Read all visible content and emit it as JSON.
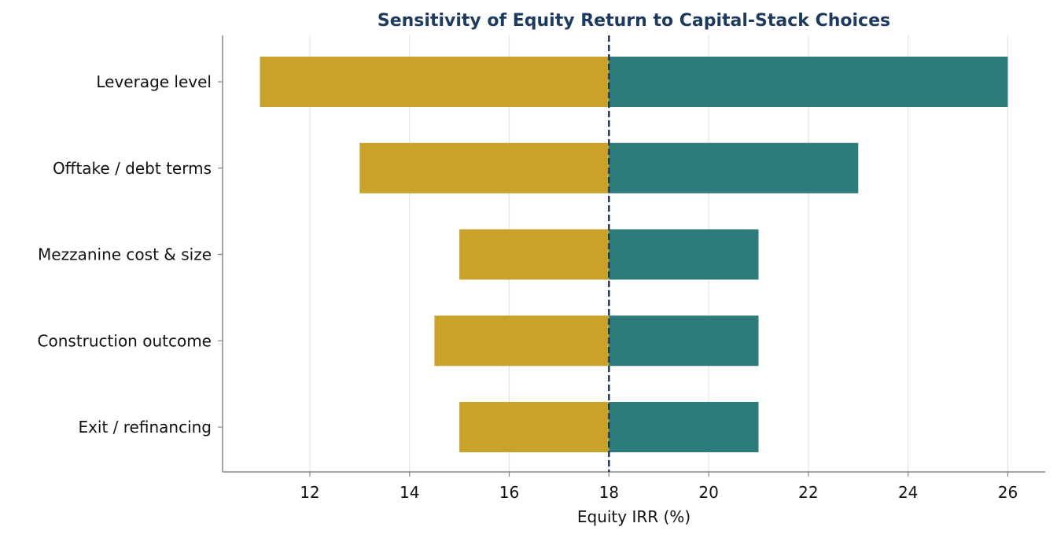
{
  "chart_data": {
    "type": "bar",
    "orientation": "horizontal",
    "chart_style": "tornado",
    "title": "Sensitivity of Equity Return to Capital-Stack Choices",
    "xlabel": "Equity IRR (%)",
    "ylabel": "",
    "xlim": [
      10.25,
      26.75
    ],
    "xticks": [
      12,
      14,
      16,
      18,
      20,
      22,
      24,
      26
    ],
    "xtick_labels": [
      "12",
      "14",
      "16",
      "18",
      "20",
      "22",
      "24",
      "26"
    ],
    "base_value": 18,
    "grid": "vertical",
    "legend": "none",
    "categories": [
      "Leverage level",
      "Offtake / debt terms",
      "Mezzanine cost & size",
      "Construction outcome",
      "Exit / refinancing"
    ],
    "series": [
      {
        "role": "downside",
        "color": "#c9a229",
        "values": [
          11.0,
          13.0,
          15.0,
          14.5,
          15.0
        ]
      },
      {
        "role": "upside",
        "color": "#2e7b7b",
        "values": [
          26.0,
          23.0,
          21.0,
          21.0,
          21.0
        ]
      }
    ],
    "colors": {
      "title": "#1f3a5f",
      "base_line": "#1f3a5f",
      "grid": "#e3e3e6",
      "axis": "#888888"
    }
  }
}
